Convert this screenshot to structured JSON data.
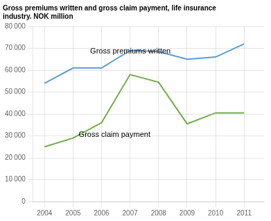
{
  "chart_data": {
    "type": "line",
    "title": "Gross premiums written and gross claim payment, life insurance\nindustry. NOK million",
    "x": [
      2004,
      2005,
      2006,
      2007,
      2008,
      2009,
      2010,
      2011
    ],
    "series": [
      {
        "name": "Gross premiums written",
        "color": "#5b9bd5",
        "values": [
          54000,
          61000,
          61000,
          69000,
          68500,
          65000,
          66000,
          72000
        ]
      },
      {
        "name": "Gross claim payment",
        "color": "#70ad47",
        "values": [
          25000,
          29000,
          36000,
          58000,
          54500,
          35500,
          40500,
          40500
        ]
      }
    ],
    "annotations": [
      {
        "text": "Gross premiums written",
        "x": 2005.6,
        "y": 67500
      },
      {
        "text": "Gross claim payment",
        "x": 2005.2,
        "y": 29500
      }
    ],
    "xlim": [
      2003.6,
      2011.7
    ],
    "xticks": [
      2004,
      2005,
      2006,
      2007,
      2008,
      2009,
      2010,
      2011
    ],
    "ylim": [
      0,
      80000
    ],
    "yticks": [
      0,
      {
        "value": 10000,
        "label": "10 000"
      },
      {
        "value": 20000,
        "label": "20 000"
      },
      {
        "value": 30000,
        "label": "30 000"
      },
      {
        "value": 40000,
        "label": "40 000"
      },
      {
        "value": 50000,
        "label": "50 000"
      },
      {
        "value": 60000,
        "label": "60 000"
      },
      {
        "value": 70000,
        "label": "70 000"
      },
      {
        "value": 80000,
        "label": "80 000"
      }
    ],
    "grid": true,
    "legend": false
  }
}
